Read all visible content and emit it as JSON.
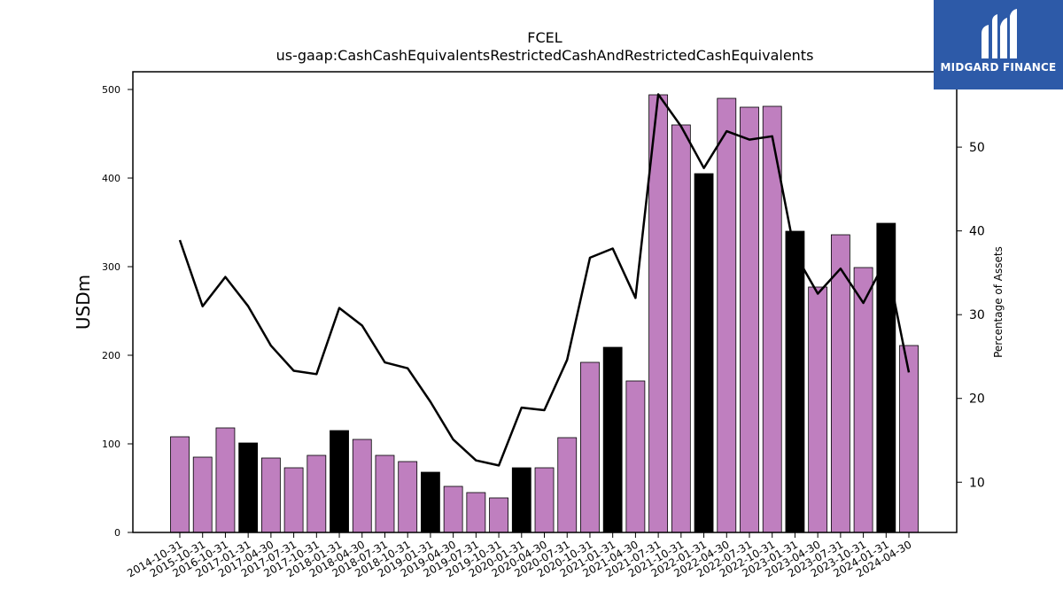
{
  "logo": {
    "text": "MIDGARD FINANCE"
  },
  "colors": {
    "bar": "#bf7fbf",
    "bar_highlight": "#000000",
    "line": "#000000",
    "logo_bg": "#2d5aa8"
  },
  "chart_data": {
    "type": "bar",
    "title": "FCEL",
    "subtitle": "us-gaap:CashCashEquivalentsRestrictedCashAndRestrictedCashEquivalents",
    "ylabel": "USDm",
    "y2label": "Percentage of Assets",
    "ylim": [
      0,
      520
    ],
    "y2lim": [
      4,
      59
    ],
    "yticks": [
      0,
      100,
      200,
      300,
      400,
      500
    ],
    "y2ticks": [
      10,
      20,
      30,
      40,
      50
    ],
    "categories": [
      "2014-10-31",
      "2015-10-31",
      "2016-10-31",
      "2017-01-31",
      "2017-04-30",
      "2017-07-31",
      "2017-10-31",
      "2018-01-31",
      "2018-04-30",
      "2018-07-31",
      "2018-10-31",
      "2019-01-31",
      "2019-04-30",
      "2019-07-31",
      "2019-10-31",
      "2020-01-31",
      "2020-04-30",
      "2020-07-31",
      "2020-10-31",
      "2021-01-31",
      "2021-04-30",
      "2021-07-31",
      "2021-10-31",
      "2022-01-31",
      "2022-04-30",
      "2022-07-31",
      "2022-10-31",
      "2023-01-31",
      "2023-04-30",
      "2023-07-31",
      "2023-10-31",
      "2024-01-31",
      "2024-04-30"
    ],
    "series": [
      {
        "type": "bar",
        "values": [
          108,
          85,
          118,
          101,
          84,
          73,
          87,
          115,
          105,
          87,
          80,
          68,
          52,
          45,
          39,
          73,
          73,
          107,
          192,
          209,
          171,
          494,
          460,
          405,
          490,
          480,
          481,
          340,
          277,
          336,
          299,
          349,
          211
        ],
        "highlight": [
          false,
          false,
          false,
          true,
          false,
          false,
          false,
          true,
          false,
          false,
          false,
          true,
          false,
          false,
          false,
          true,
          false,
          false,
          false,
          true,
          false,
          false,
          false,
          true,
          false,
          false,
          false,
          true,
          false,
          false,
          false,
          true,
          false
        ]
      },
      {
        "type": "line",
        "axis": "right",
        "values": [
          38.9,
          31.0,
          34.5,
          31.0,
          26.3,
          23.3,
          22.9,
          30.8,
          28.7,
          24.3,
          23.6,
          19.6,
          15.1,
          12.6,
          12.0,
          18.9,
          18.6,
          24.6,
          36.8,
          37.9,
          32.0,
          56.3,
          52.5,
          47.5,
          51.9,
          50.9,
          51.3,
          37.3,
          32.5,
          35.5,
          31.4,
          36.6,
          23.1
        ]
      }
    ]
  }
}
